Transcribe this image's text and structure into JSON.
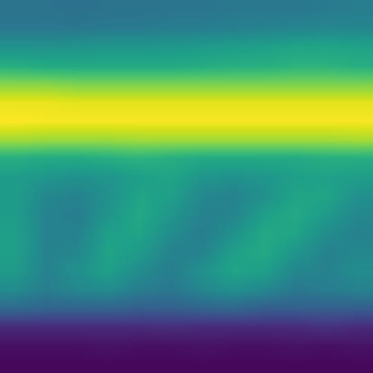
{
  "chart_data": {
    "type": "heatmap",
    "x": [
      0,
      1,
      2,
      3,
      4,
      5,
      6,
      7,
      8,
      9,
      10,
      11
    ],
    "y": [
      0,
      1,
      2,
      3,
      4,
      5,
      6,
      7,
      8,
      9,
      10,
      11,
      12,
      13,
      14,
      15,
      16,
      17,
      18,
      19
    ],
    "xlim": [
      -0.5,
      11.5
    ],
    "ylim": [
      19.5,
      -0.5
    ],
    "color": "viridis",
    "color_range": [
      0,
      1
    ],
    "tick_labels": false,
    "grid": false,
    "cells": [
      [
        0.38,
        0.38,
        0.37,
        0.38,
        0.38,
        0.39,
        0.39,
        0.4,
        0.4,
        0.4,
        0.41,
        0.42
      ],
      [
        0.4,
        0.4,
        0.4,
        0.41,
        0.41,
        0.42,
        0.42,
        0.43,
        0.44,
        0.45,
        0.46,
        0.46
      ],
      [
        0.5,
        0.5,
        0.51,
        0.52,
        0.52,
        0.53,
        0.54,
        0.55,
        0.56,
        0.58,
        0.58,
        0.57
      ],
      [
        0.62,
        0.6,
        0.6,
        0.6,
        0.6,
        0.6,
        0.61,
        0.62,
        0.62,
        0.64,
        0.64,
        0.62
      ],
      [
        0.82,
        0.82,
        0.8,
        0.8,
        0.8,
        0.8,
        0.8,
        0.8,
        0.8,
        0.8,
        0.8,
        0.8
      ],
      [
        0.97,
        0.97,
        0.96,
        0.96,
        0.96,
        0.96,
        0.96,
        0.96,
        0.96,
        0.96,
        0.96,
        0.96
      ],
      [
        1.0,
        0.99,
        0.99,
        0.99,
        0.99,
        0.99,
        0.99,
        0.99,
        0.99,
        0.99,
        0.99,
        0.99
      ],
      [
        0.86,
        0.85,
        0.85,
        0.85,
        0.86,
        0.86,
        0.86,
        0.86,
        0.86,
        0.86,
        0.86,
        0.87
      ],
      [
        0.62,
        0.6,
        0.6,
        0.62,
        0.64,
        0.62,
        0.6,
        0.6,
        0.6,
        0.6,
        0.62,
        0.62
      ],
      [
        0.55,
        0.52,
        0.5,
        0.52,
        0.56,
        0.58,
        0.52,
        0.5,
        0.52,
        0.56,
        0.57,
        0.55
      ],
      [
        0.55,
        0.46,
        0.44,
        0.5,
        0.58,
        0.56,
        0.46,
        0.44,
        0.5,
        0.58,
        0.58,
        0.5
      ],
      [
        0.55,
        0.44,
        0.42,
        0.52,
        0.6,
        0.52,
        0.44,
        0.45,
        0.56,
        0.6,
        0.54,
        0.46
      ],
      [
        0.56,
        0.44,
        0.44,
        0.56,
        0.58,
        0.48,
        0.42,
        0.5,
        0.6,
        0.58,
        0.48,
        0.44
      ],
      [
        0.56,
        0.44,
        0.46,
        0.58,
        0.54,
        0.44,
        0.44,
        0.56,
        0.6,
        0.52,
        0.44,
        0.46
      ],
      [
        0.54,
        0.44,
        0.5,
        0.56,
        0.48,
        0.42,
        0.5,
        0.58,
        0.56,
        0.46,
        0.44,
        0.48
      ],
      [
        0.48,
        0.42,
        0.46,
        0.48,
        0.42,
        0.4,
        0.46,
        0.5,
        0.46,
        0.4,
        0.42,
        0.44
      ],
      [
        0.34,
        0.32,
        0.32,
        0.32,
        0.3,
        0.3,
        0.32,
        0.33,
        0.3,
        0.3,
        0.3,
        0.3
      ],
      [
        0.12,
        0.12,
        0.12,
        0.12,
        0.12,
        0.13,
        0.12,
        0.12,
        0.12,
        0.12,
        0.14,
        0.12
      ],
      [
        0.04,
        0.04,
        0.04,
        0.05,
        0.04,
        0.04,
        0.05,
        0.04,
        0.04,
        0.05,
        0.04,
        0.05
      ],
      [
        0.02,
        0.02,
        0.02,
        0.02,
        0.02,
        0.02,
        0.02,
        0.02,
        0.02,
        0.02,
        0.02,
        0.02
      ]
    ]
  }
}
